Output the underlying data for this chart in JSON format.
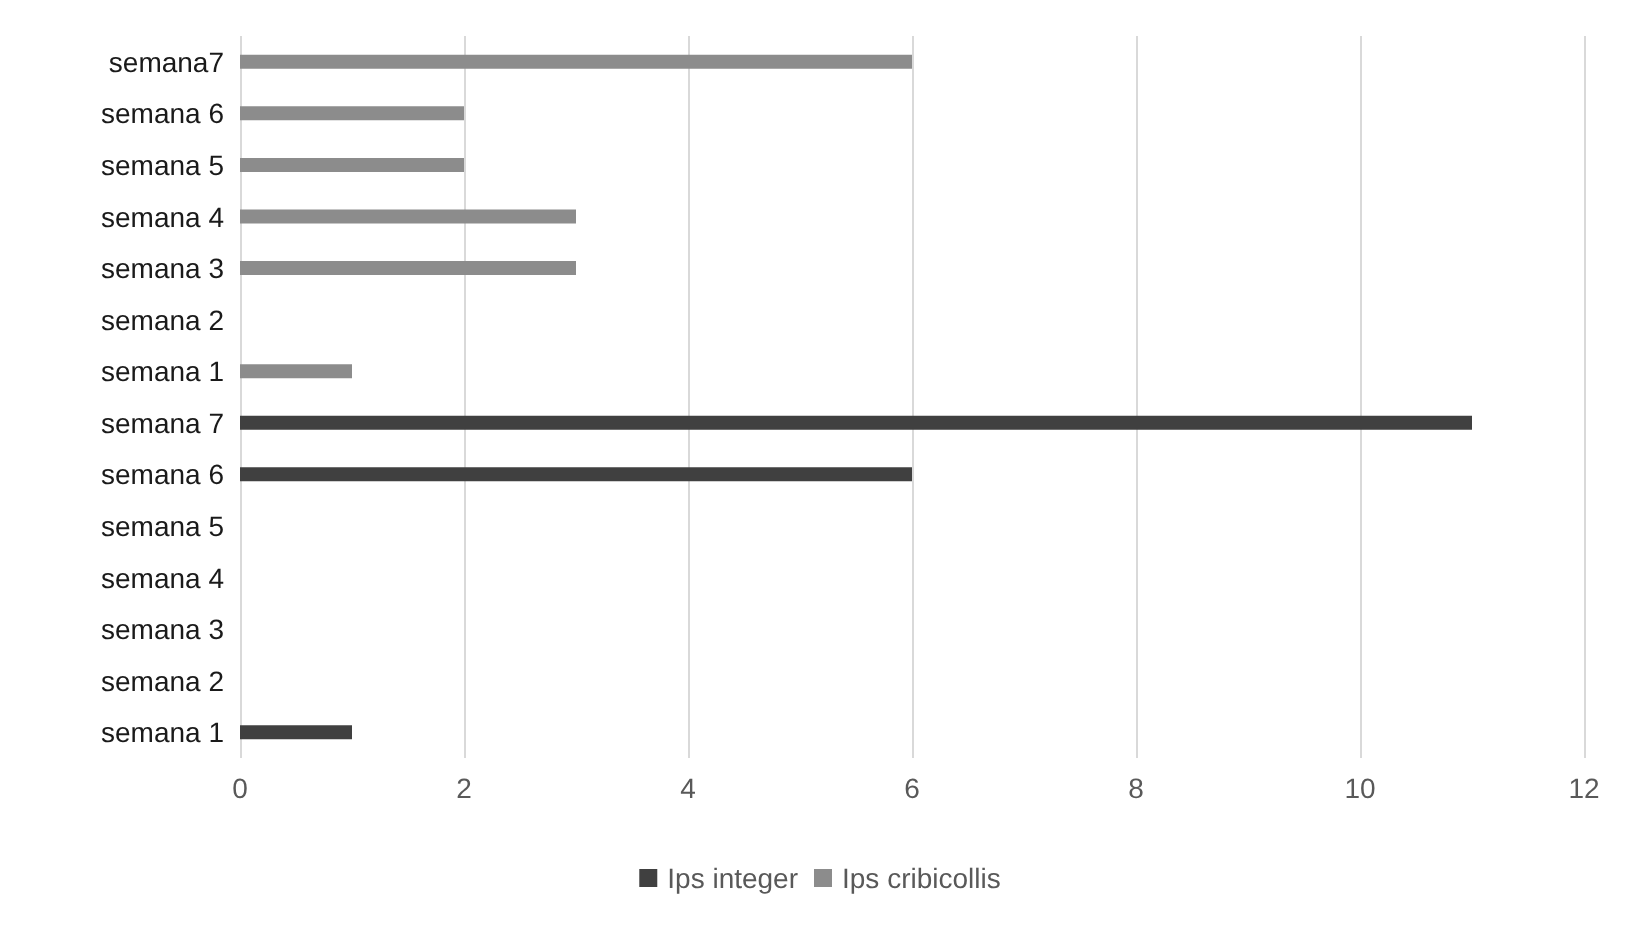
{
  "chart_data": {
    "type": "bar",
    "orientation": "horizontal",
    "categories": [
      "semana7",
      "semana 6",
      "semana 5",
      "semana 4",
      "semana 3",
      "semana 2",
      "semana 1",
      "semana 7",
      "semana 6",
      "semana 5",
      "semana 4",
      "semana 3",
      "semana 2",
      "semana 1"
    ],
    "series": [
      {
        "name": "Ips integer",
        "color": "#404040",
        "values": [
          null,
          null,
          null,
          null,
          null,
          null,
          null,
          11,
          6,
          0,
          0,
          0,
          0,
          1
        ]
      },
      {
        "name": "Ips cribicollis",
        "color": "#8c8c8c",
        "values": [
          6,
          2,
          2,
          3,
          3,
          0,
          1,
          null,
          null,
          null,
          null,
          null,
          null,
          null
        ]
      }
    ],
    "xlim": [
      0,
      12
    ],
    "xticks": [
      0,
      2,
      4,
      6,
      8,
      10,
      12
    ],
    "grid": "x",
    "legend": "bottom"
  }
}
